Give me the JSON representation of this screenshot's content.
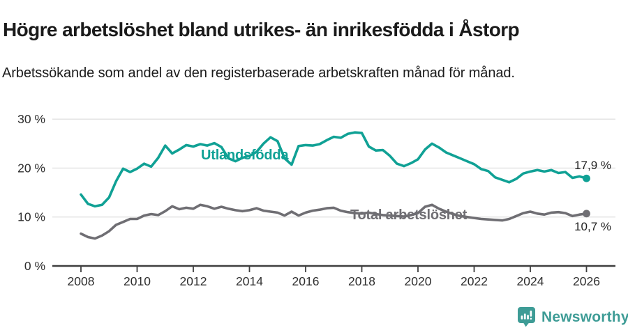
{
  "header": {
    "title": "Högre arbetslöshet bland utrikes- än inrikesfödda i Åstorp",
    "subtitle": "Arbetssökande som andel av den registerbaserade arbetskraften månad för månad."
  },
  "chart_data": {
    "type": "line",
    "title": "Högre arbetslöshet bland utrikes- än inrikesfödda i Åstorp",
    "subtitle": "Arbetssökande som andel av den registerbaserade arbetskraften månad för månad.",
    "unit": "%",
    "xlim": [
      2007.2,
      2027.0
    ],
    "ylim": [
      0,
      30
    ],
    "grid": true,
    "x_ticks": [
      {
        "value": 2008,
        "label": "2008"
      },
      {
        "value": 2010,
        "label": "2010"
      },
      {
        "value": 2012,
        "label": "2012"
      },
      {
        "value": 2014,
        "label": "2014"
      },
      {
        "value": 2016,
        "label": "2016"
      },
      {
        "value": 2018,
        "label": "2018"
      },
      {
        "value": 2020,
        "label": "2020"
      },
      {
        "value": 2022,
        "label": "2022"
      },
      {
        "value": 2024,
        "label": "2024"
      },
      {
        "value": 2026,
        "label": "2026"
      }
    ],
    "y_ticks": [
      {
        "value": 0,
        "label": "0 %"
      },
      {
        "value": 10,
        "label": "10 %"
      },
      {
        "value": 20,
        "label": "20 %"
      },
      {
        "value": 30,
        "label": "30 %"
      }
    ],
    "x_start": 2008,
    "x_step": 0.25,
    "series": [
      {
        "name": "Utlandsfödda",
        "color": "#10a195",
        "end_label": "17,9 %",
        "end_value": 17.9,
        "values": [
          14.6,
          12.7,
          12.2,
          12.5,
          14.0,
          17.3,
          19.9,
          19.2,
          19.9,
          20.9,
          20.3,
          22.1,
          24.6,
          23.0,
          23.8,
          24.7,
          24.4,
          24.9,
          24.6,
          25.1,
          24.3,
          22.0,
          21.4,
          22.1,
          22.5,
          23.3,
          25.0,
          26.3,
          25.5,
          22.0,
          20.7,
          24.5,
          24.7,
          24.6,
          24.9,
          25.7,
          26.4,
          26.2,
          27.0,
          27.3,
          27.2,
          24.4,
          23.6,
          23.7,
          22.5,
          20.9,
          20.4,
          21.0,
          21.8,
          23.8,
          25.0,
          24.2,
          23.2,
          22.6,
          22.0,
          21.4,
          20.8,
          19.8,
          19.4,
          18.1,
          17.6,
          17.1,
          17.8,
          18.9,
          19.3,
          19.6,
          19.3,
          19.6,
          19.0,
          19.2,
          18.0,
          18.3,
          17.9
        ]
      },
      {
        "name": "Total arbetslöshet",
        "color": "#6f6e73",
        "end_label": "10,7 %",
        "end_value": 10.7,
        "values": [
          6.6,
          5.9,
          5.6,
          6.2,
          7.1,
          8.4,
          9.0,
          9.6,
          9.6,
          10.3,
          10.6,
          10.4,
          11.2,
          12.2,
          11.6,
          11.9,
          11.7,
          12.5,
          12.2,
          11.7,
          12.1,
          11.7,
          11.4,
          11.2,
          11.4,
          11.8,
          11.3,
          11.1,
          10.9,
          10.3,
          11.1,
          10.3,
          10.9,
          11.3,
          11.5,
          11.8,
          11.9,
          11.3,
          11.0,
          10.8,
          10.7,
          10.9,
          10.6,
          10.4,
          10.3,
          10.2,
          10.1,
          10.4,
          10.8,
          12.1,
          12.5,
          11.7,
          11.1,
          10.6,
          10.2,
          10.0,
          9.8,
          9.6,
          9.5,
          9.4,
          9.3,
          9.6,
          10.2,
          10.8,
          11.1,
          10.7,
          10.5,
          10.9,
          11.0,
          10.8,
          10.2,
          10.5,
          10.7
        ]
      }
    ],
    "legend_position": "inline-labels",
    "colors": {
      "grid": "#e2e2e2",
      "axis": "#3f3f3f",
      "tick_text": "#2e2e2e"
    }
  },
  "footer": {
    "brand": "Newsworthy",
    "brand_color": "#3e9c96",
    "logo_icon": "bar-chart-speech-bubble"
  }
}
